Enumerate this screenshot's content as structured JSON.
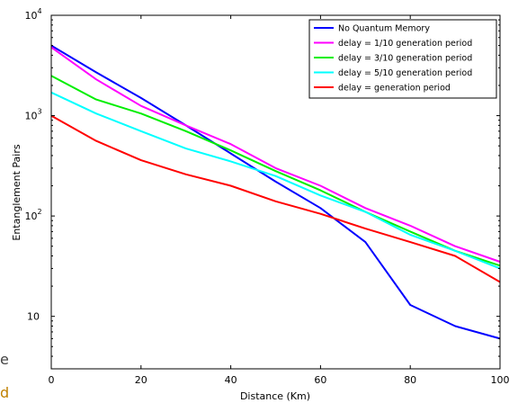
{
  "edge_fragment": {
    "top": "e",
    "bottom": "d",
    "top_color": "#444444",
    "bottom_color": "#c08000"
  },
  "chart_data": {
    "type": "line",
    "title": "",
    "xlabel": "Distance (Km)",
    "ylabel": "Entanglement Pairs",
    "xlim": [
      0,
      100
    ],
    "ylim": [
      3,
      10000
    ],
    "yscale": "log",
    "grid": false,
    "legend_position": "top-right",
    "x_ticks": [
      0,
      20,
      40,
      60,
      80,
      100
    ],
    "x_tick_labels": [
      "0",
      "20",
      "40",
      "60",
      "80",
      "100"
    ],
    "y_ticks": [
      10,
      100,
      1000,
      10000
    ],
    "y_tick_labels": [
      {
        "base": "10",
        "exp": ""
      },
      {
        "base": "10",
        "exp": "2"
      },
      {
        "base": "10",
        "exp": "3"
      },
      {
        "base": "10",
        "exp": "4"
      }
    ],
    "x": [
      0,
      10,
      20,
      30,
      40,
      50,
      60,
      70,
      80,
      90,
      100
    ],
    "series": [
      {
        "name": "No Quantum Memory",
        "color": "#0000ff",
        "values": [
          5000,
          2700,
          1500,
          800,
          420,
          220,
          120,
          55,
          13,
          8,
          6
        ]
      },
      {
        "name": "delay = 1/10 generation period",
        "color": "#ff00ff",
        "values": [
          4800,
          2300,
          1250,
          800,
          520,
          300,
          200,
          120,
          80,
          50,
          35
        ]
      },
      {
        "name": "delay = 3/10 generation period",
        "color": "#00ee00",
        "values": [
          2500,
          1450,
          1050,
          700,
          450,
          280,
          180,
          110,
          70,
          45,
          32
        ]
      },
      {
        "name": "delay = 5/10 generation period",
        "color": "#00ffff",
        "values": [
          1700,
          1050,
          700,
          470,
          350,
          250,
          160,
          110,
          65,
          45,
          30
        ]
      },
      {
        "name": "delay = generation period",
        "color": "#ff0000",
        "values": [
          1000,
          560,
          360,
          260,
          200,
          140,
          105,
          75,
          55,
          40,
          22
        ]
      }
    ]
  }
}
